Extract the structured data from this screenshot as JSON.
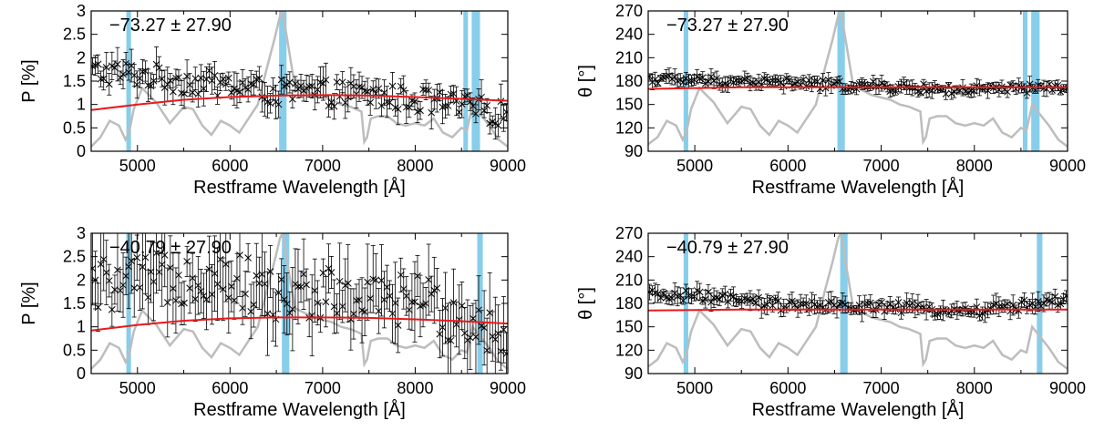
{
  "chart_data": [
    {
      "type": "scatter",
      "annotation": "−73.27 ± 27.90",
      "xlabel": "Restframe Wavelength [Å]",
      "ylabel": "P [%]",
      "xlim": [
        4500,
        9000
      ],
      "ylim": [
        0,
        3
      ],
      "xticks": [
        "5000",
        "6000",
        "7000",
        "8000",
        "9000"
      ],
      "yticks": [
        "0",
        "0.5",
        "1",
        "1.5",
        "2",
        "2.5",
        "3"
      ],
      "bands": [
        [
          4880,
          4930
        ],
        [
          6530,
          6610
        ],
        [
          8520,
          8570
        ],
        [
          8610,
          8700
        ]
      ],
      "fit": {
        "x": [
          4500,
          5000,
          5500,
          6000,
          6500,
          7000,
          7500,
          8000,
          8500,
          9000
        ],
        "y": [
          0.88,
          1.0,
          1.1,
          1.16,
          1.19,
          1.2,
          1.19,
          1.16,
          1.12,
          1.08
        ]
      },
      "spectrum": {
        "x": [
          4500,
          4600,
          4700,
          4800,
          4870,
          4910,
          4960,
          5050,
          5200,
          5350,
          5500,
          5600,
          5700,
          5800,
          5900,
          6000,
          6100,
          6200,
          6300,
          6400,
          6480,
          6540,
          6570,
          6600,
          6650,
          6700,
          6800,
          6900,
          7000,
          7100,
          7200,
          7300,
          7420,
          7450,
          7480,
          7520,
          7600,
          7700,
          7800,
          7900,
          8000,
          8100,
          8200,
          8300,
          8400,
          8500,
          8560,
          8620,
          8700,
          8800,
          8900,
          9000
        ],
        "y": [
          0.1,
          0.3,
          0.65,
          0.55,
          0.25,
          0.4,
          0.9,
          1.35,
          1.05,
          0.6,
          0.95,
          0.9,
          0.55,
          0.35,
          0.65,
          0.55,
          0.4,
          0.7,
          1.0,
          1.8,
          2.4,
          2.9,
          3.0,
          2.6,
          2.0,
          1.4,
          1.3,
          1.2,
          1.15,
          1.1,
          1.0,
          0.95,
          0.85,
          0.2,
          0.3,
          0.7,
          0.75,
          0.75,
          0.6,
          0.55,
          0.6,
          0.55,
          0.7,
          0.4,
          0.3,
          0.5,
          0.45,
          1.0,
          0.8,
          0.55,
          0.25,
          0.1
        ]
      },
      "data_trend": {
        "x": [
          4500,
          5000,
          5500,
          6000,
          6500,
          7000,
          7500,
          8000,
          8500,
          9000
        ],
        "y": [
          1.7,
          1.65,
          1.5,
          1.4,
          1.25,
          1.25,
          1.2,
          1.1,
          0.95,
          0.8
        ],
        "scatter": 0.28,
        "err": 0.25
      }
    },
    {
      "type": "scatter",
      "annotation": "−73.27 ± 27.90",
      "xlabel": "Restframe Wavelength [Å]",
      "ylabel": "θ [°]",
      "xlim": [
        4500,
        9000
      ],
      "ylim": [
        90,
        270
      ],
      "xticks": [
        "5000",
        "6000",
        "7000",
        "8000",
        "9000"
      ],
      "yticks": [
        "90",
        "120",
        "150",
        "180",
        "210",
        "240",
        "270"
      ],
      "bands": [
        [
          4880,
          4930
        ],
        [
          6530,
          6610
        ],
        [
          8520,
          8570
        ],
        [
          8610,
          8700
        ]
      ],
      "fit": {
        "x": [
          4500,
          5500,
          6500,
          7500,
          8500,
          9000
        ],
        "y": [
          170,
          172,
          172,
          172,
          172,
          172
        ]
      },
      "spectrum": {
        "x": [
          4500,
          4600,
          4700,
          4800,
          4870,
          4910,
          4960,
          5050,
          5200,
          5350,
          5500,
          5600,
          5700,
          5800,
          5900,
          6000,
          6100,
          6200,
          6300,
          6400,
          6480,
          6540,
          6570,
          6600,
          6650,
          6700,
          6800,
          6900,
          7000,
          7100,
          7200,
          7300,
          7420,
          7450,
          7480,
          7520,
          7600,
          7700,
          7800,
          7900,
          8000,
          8100,
          8200,
          8300,
          8400,
          8500,
          8560,
          8620,
          8700,
          8800,
          8900,
          9000
        ],
        "y": [
          99,
          108,
          129,
          123,
          105,
          114,
          144,
          171,
          153,
          126,
          147,
          144,
          123,
          111,
          129,
          123,
          114,
          132,
          150,
          198,
          234,
          264,
          270,
          246,
          210,
          174,
          168,
          162,
          159,
          156,
          150,
          147,
          141,
          102,
          108,
          132,
          135,
          135,
          126,
          123,
          126,
          123,
          132,
          114,
          108,
          120,
          117,
          150,
          138,
          123,
          105,
          96
        ]
      },
      "data_trend": {
        "x": [
          4500,
          5000,
          5500,
          6000,
          6500,
          7000,
          7500,
          8000,
          8500,
          9000
        ],
        "y": [
          183,
          181,
          180,
          178,
          175,
          173,
          170,
          168,
          170,
          172
        ],
        "scatter": 6,
        "err": 7
      }
    },
    {
      "type": "scatter",
      "annotation": "−40.79 ± 27.90",
      "xlabel": "Restframe Wavelength [Å]",
      "ylabel": "P [%]",
      "xlim": [
        4500,
        9000
      ],
      "ylim": [
        0,
        3
      ],
      "xticks": [
        "5000",
        "6000",
        "7000",
        "8000",
        "9000"
      ],
      "yticks": [
        "0",
        "0.5",
        "1",
        "1.5",
        "2",
        "2.5",
        "3"
      ],
      "bands": [
        [
          4880,
          4930
        ],
        [
          6560,
          6640
        ],
        [
          8670,
          8730
        ]
      ],
      "fit": {
        "x": [
          4500,
          5000,
          5500,
          6000,
          6500,
          7000,
          7500,
          8000,
          8500,
          9000
        ],
        "y": [
          0.92,
          1.04,
          1.13,
          1.18,
          1.2,
          1.2,
          1.19,
          1.16,
          1.12,
          1.07
        ]
      },
      "spectrum": {
        "x": [
          4500,
          4600,
          4700,
          4800,
          4870,
          4910,
          4960,
          5050,
          5200,
          5350,
          5500,
          5600,
          5700,
          5800,
          5900,
          6000,
          6100,
          6200,
          6300,
          6400,
          6480,
          6540,
          6570,
          6600,
          6650,
          6700,
          6800,
          6900,
          7000,
          7100,
          7200,
          7300,
          7420,
          7450,
          7480,
          7520,
          7600,
          7700,
          7800,
          7900,
          8000,
          8100,
          8200,
          8300,
          8400,
          8500,
          8560,
          8620,
          8700,
          8800,
          8900,
          9000
        ],
        "y": [
          0.1,
          0.3,
          0.65,
          0.55,
          0.25,
          0.4,
          0.9,
          1.35,
          1.05,
          0.6,
          0.95,
          0.9,
          0.55,
          0.35,
          0.65,
          0.55,
          0.4,
          0.7,
          1.0,
          1.8,
          2.4,
          2.9,
          3.0,
          2.6,
          2.0,
          1.4,
          1.3,
          1.2,
          1.15,
          1.1,
          1.0,
          0.95,
          0.85,
          0.2,
          0.3,
          0.7,
          0.75,
          0.75,
          0.6,
          0.55,
          0.6,
          0.55,
          0.7,
          0.4,
          0.3,
          0.5,
          0.45,
          1.0,
          0.8,
          0.55,
          0.25,
          0.1
        ]
      },
      "data_trend": {
        "x": [
          4500,
          5000,
          5500,
          6000,
          6500,
          7000,
          7500,
          8000,
          8500,
          9000
        ],
        "y": [
          1.9,
          1.9,
          2.1,
          2.1,
          1.6,
          1.7,
          1.5,
          1.6,
          1.2,
          0.8
        ],
        "scatter": 0.6,
        "err": 0.6
      }
    },
    {
      "type": "scatter",
      "annotation": "−40.79 ± 27.90",
      "xlabel": "Restframe Wavelength [Å]",
      "ylabel": "θ [°]",
      "xlim": [
        4500,
        9000
      ],
      "ylim": [
        90,
        270
      ],
      "xticks": [
        "5000",
        "6000",
        "7000",
        "8000",
        "9000"
      ],
      "yticks": [
        "90",
        "120",
        "150",
        "180",
        "210",
        "240",
        "270"
      ],
      "bands": [
        [
          4880,
          4930
        ],
        [
          6560,
          6640
        ],
        [
          8670,
          8730
        ]
      ],
      "fit": {
        "x": [
          4500,
          5500,
          6500,
          7500,
          8500,
          9000
        ],
        "y": [
          171,
          172,
          172,
          172,
          172,
          172
        ]
      },
      "spectrum": {
        "x": [
          4500,
          4600,
          4700,
          4800,
          4870,
          4910,
          4960,
          5050,
          5200,
          5350,
          5500,
          5600,
          5700,
          5800,
          5900,
          6000,
          6100,
          6200,
          6300,
          6400,
          6480,
          6540,
          6570,
          6600,
          6650,
          6700,
          6800,
          6900,
          7000,
          7100,
          7200,
          7300,
          7420,
          7450,
          7480,
          7520,
          7600,
          7700,
          7800,
          7900,
          8000,
          8100,
          8200,
          8300,
          8400,
          8500,
          8560,
          8620,
          8700,
          8800,
          8900,
          9000
        ],
        "y": [
          99,
          108,
          129,
          123,
          105,
          114,
          144,
          171,
          153,
          126,
          147,
          144,
          123,
          111,
          129,
          123,
          114,
          132,
          150,
          198,
          234,
          264,
          270,
          246,
          210,
          174,
          168,
          162,
          159,
          156,
          150,
          147,
          141,
          102,
          108,
          132,
          135,
          135,
          126,
          123,
          126,
          123,
          132,
          114,
          108,
          120,
          117,
          150,
          138,
          123,
          105,
          96
        ]
      },
      "data_trend": {
        "x": [
          4500,
          5000,
          5500,
          6000,
          6500,
          7000,
          7500,
          8000,
          8500,
          9000
        ],
        "y": [
          190,
          190,
          183,
          177,
          176,
          176,
          172,
          170,
          178,
          183
        ],
        "scatter": 7,
        "err": 9
      }
    }
  ]
}
